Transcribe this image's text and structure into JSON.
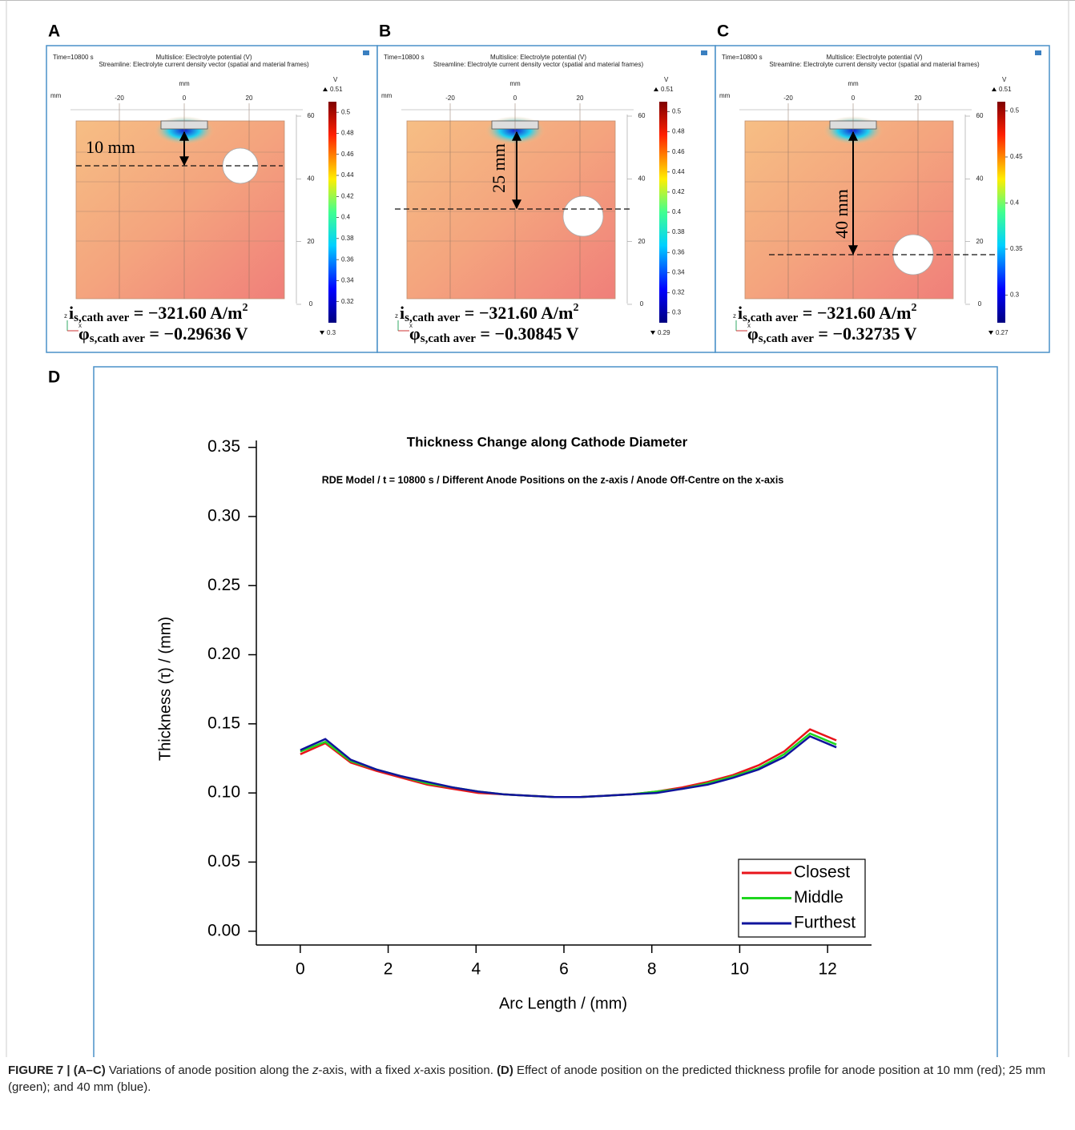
{
  "panels": [
    {
      "label": "A",
      "time": "Time=10800 s",
      "title_lines": [
        "Multislice: Electrolyte potential (V)",
        "Streamline: Electrolyte current density vector (spatial and material frames)"
      ],
      "x_unit": "mm",
      "y_unit": "mm",
      "x_ticks": [
        -20,
        0,
        20
      ],
      "z_ticks": [
        60,
        40,
        20,
        0
      ],
      "triad": [
        "z",
        "x"
      ],
      "colorbar_unit": "V",
      "colorbar_max": 0.51,
      "colorbar_min": 0.3,
      "colorbar_ticks": [
        0.5,
        0.48,
        0.46,
        0.44,
        0.42,
        0.4,
        0.38,
        0.36,
        0.34,
        0.32
      ],
      "distance": "10 mm",
      "current": {
        "symbol": "i",
        "subscript": "s,cath aver",
        "value": " = −321.60 A/m",
        "superscript": "2"
      },
      "potential": {
        "symbol": "φ",
        "subscript": "s,cath aver",
        "value": " = −0.29636 V"
      }
    },
    {
      "label": "B",
      "time": "Time=10800 s",
      "title_lines": [
        "Multislice: Electrolyte potential (V)",
        "Streamline: Electrolyte current density vector (spatial and material frames)"
      ],
      "x_unit": "mm",
      "y_unit": "mm",
      "x_ticks": [
        -20,
        0,
        20
      ],
      "z_ticks": [
        60,
        40,
        20,
        0
      ],
      "triad": [
        "z",
        "x"
      ],
      "colorbar_unit": "V",
      "colorbar_max": 0.51,
      "colorbar_min": 0.29,
      "colorbar_ticks": [
        0.5,
        0.48,
        0.46,
        0.44,
        0.42,
        0.4,
        0.38,
        0.36,
        0.34,
        0.32,
        0.3
      ],
      "distance": "25 mm",
      "current": {
        "symbol": "i",
        "subscript": "s,cath aver",
        "value": " = −321.60 A/m",
        "superscript": "2"
      },
      "potential": {
        "symbol": "φ",
        "subscript": "s,cath aver",
        "value": " = −0.30845 V"
      }
    },
    {
      "label": "C",
      "time": "Time=10800 s",
      "title_lines": [
        "Multislice: Electrolyte potential (V)",
        "Streamline: Electrolyte current density vector (spatial and material frames)"
      ],
      "x_unit": "mm",
      "y_unit": "mm",
      "x_ticks": [
        -20,
        0,
        20
      ],
      "z_ticks": [
        60,
        40,
        20,
        0
      ],
      "triad": [
        "z",
        "x"
      ],
      "colorbar_unit": "V",
      "colorbar_max": 0.51,
      "colorbar_min": 0.27,
      "colorbar_ticks": [
        0.5,
        0.45,
        0.4,
        0.35,
        0.3
      ],
      "distance": "40 mm",
      "current": {
        "symbol": "i",
        "subscript": "s,cath aver",
        "value": " = −321.60 A/m",
        "superscript": "2"
      },
      "potential": {
        "symbol": "φ",
        "subscript": "s,cath aver",
        "value": " = −0.32735 V"
      }
    }
  ],
  "chart_label": "D",
  "chart_data": {
    "type": "line",
    "title": "Thickness Change along Cathode Diameter",
    "subtitle": "RDE Model / t = 10800 s / Different Anode Positions on the z-axis / Anode Off-Centre on the x-axis",
    "x_label": "Arc Length / (mm)",
    "y_label": "Thickness (τ) / (mm)",
    "x": [
      0,
      0.57,
      1.15,
      1.73,
      2.31,
      2.89,
      3.47,
      4.05,
      4.63,
      5.21,
      5.79,
      6.37,
      6.95,
      7.53,
      8.11,
      8.69,
      9.27,
      9.85,
      10.43,
      11.01,
      11.6,
      12.2
    ],
    "series": [
      {
        "name": "Closest",
        "color": "#e8141a",
        "values": [
          0.128,
          0.136,
          0.122,
          0.116,
          0.111,
          0.106,
          0.103,
          0.1,
          0.099,
          0.098,
          0.097,
          0.097,
          0.098,
          0.099,
          0.101,
          0.104,
          0.108,
          0.113,
          0.12,
          0.13,
          0.146,
          0.138
        ]
      },
      {
        "name": "Middle",
        "color": "#1ed61e",
        "values": [
          0.13,
          0.137,
          0.123,
          0.117,
          0.112,
          0.107,
          0.104,
          0.101,
          0.099,
          0.098,
          0.097,
          0.097,
          0.098,
          0.099,
          0.101,
          0.103,
          0.107,
          0.112,
          0.118,
          0.128,
          0.143,
          0.135
        ]
      },
      {
        "name": "Furthest",
        "color": "#10149c",
        "values": [
          0.131,
          0.139,
          0.124,
          0.117,
          0.112,
          0.108,
          0.104,
          0.101,
          0.099,
          0.098,
          0.097,
          0.097,
          0.098,
          0.099,
          0.1,
          0.103,
          0.106,
          0.111,
          0.117,
          0.126,
          0.141,
          0.133
        ]
      }
    ],
    "xlim": [
      -1,
      13
    ],
    "xticks": [
      0,
      2,
      4,
      6,
      8,
      10,
      12
    ],
    "ylim": [
      -0.01,
      0.355
    ],
    "yticks": [
      {
        "value": 0,
        "label": "0.00"
      },
      0.05,
      {
        "value": 0.1,
        "label": "0.10"
      },
      0.15,
      {
        "value": 0.2,
        "label": "0.20"
      },
      0.25,
      {
        "value": 0.3,
        "label": "0.30"
      },
      0.35
    ],
    "legend": "lower right"
  },
  "caption": [
    "FIGURE 7 | (A–C)",
    " Variations of anode position along the ",
    "z",
    "-axis, with a fixed ",
    "x",
    "-axis position. ",
    "(D)",
    " Effect of anode position on the predicted thickness profile for anode position at 10 mm (red); 25 mm (green); and 40 mm (blue)."
  ]
}
